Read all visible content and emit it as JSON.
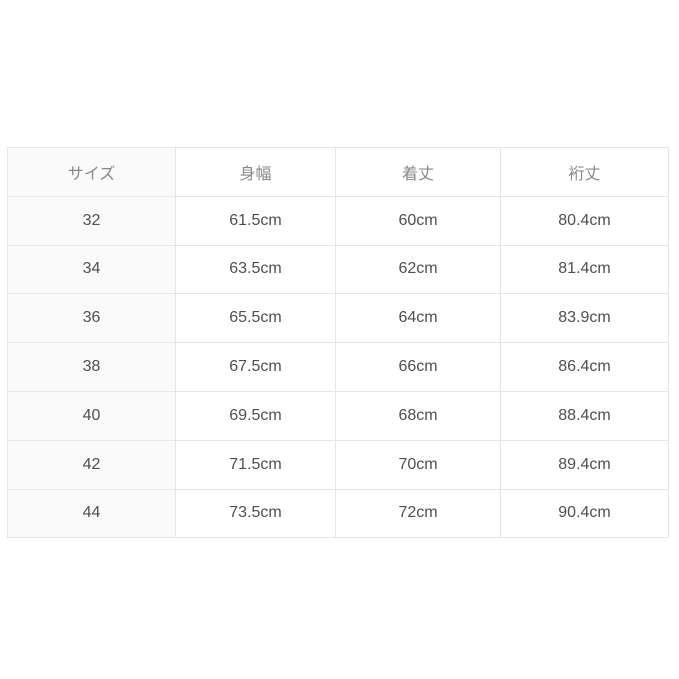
{
  "colors": {
    "page_bg": "#ffffff",
    "border": "#e6e6e6",
    "first_col_bg": "#fafafa",
    "cell_bg": "#ffffff",
    "header_text": "#888888",
    "body_text": "#4f4f4f"
  },
  "chart_data": {
    "type": "table",
    "title": "",
    "columns": [
      "サイズ",
      "身幅",
      "着丈",
      "裄丈"
    ],
    "rows": [
      [
        "32",
        "61.5cm",
        "60cm",
        "80.4cm"
      ],
      [
        "34",
        "63.5cm",
        "62cm",
        "81.4cm"
      ],
      [
        "36",
        "65.5cm",
        "64cm",
        "83.9cm"
      ],
      [
        "38",
        "67.5cm",
        "66cm",
        "86.4cm"
      ],
      [
        "40",
        "69.5cm",
        "68cm",
        "88.4cm"
      ],
      [
        "42",
        "71.5cm",
        "70cm",
        "89.4cm"
      ],
      [
        "44",
        "73.5cm",
        "72cm",
        "90.4cm"
      ]
    ],
    "layout": {
      "grid": true,
      "header_row": true,
      "first_column_shaded": true
    }
  }
}
